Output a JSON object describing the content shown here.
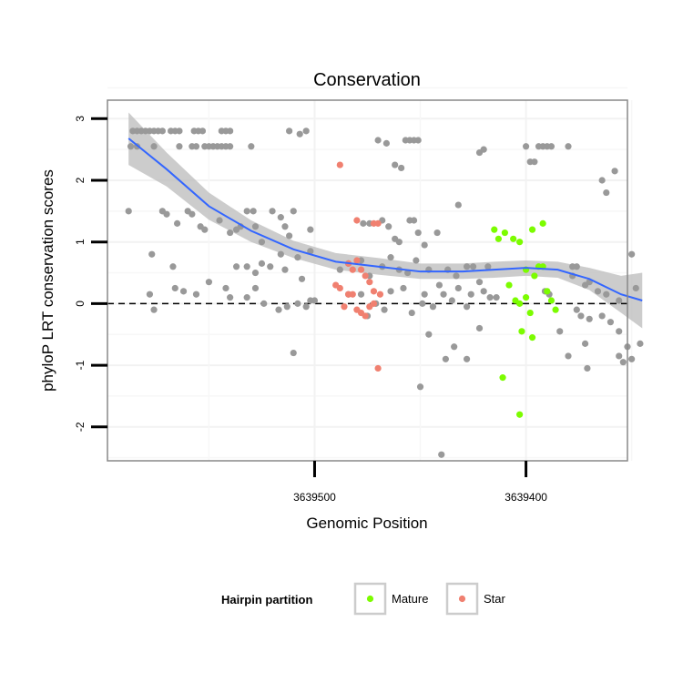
{
  "chart_data": {
    "type": "scatter",
    "title": "Conservation",
    "xlabel": "Genomic Position",
    "ylabel": "phyloP LRT conservation scores",
    "x_axis_reversed": true,
    "x_ticks": [
      {
        "value": 3639500,
        "label": "3639500"
      },
      {
        "value": 3639400,
        "label": "3639400"
      }
    ],
    "y_ticks": [
      {
        "value": -2,
        "label": "-2"
      },
      {
        "value": -1,
        "label": "-1"
      },
      {
        "value": 0,
        "label": "0"
      },
      {
        "value": 1,
        "label": "1"
      },
      {
        "value": 2,
        "label": "2"
      },
      {
        "value": 3,
        "label": "3"
      }
    ],
    "xlim": [
      3639598,
      3639352
    ],
    "ylim": [
      -2.55,
      3.3
    ],
    "grid": true,
    "reference_line": {
      "y": 0,
      "style": "dashed",
      "color": "#000000"
    },
    "legend": {
      "title": "Hairpin partition",
      "position": "bottom",
      "entries": [
        {
          "label": "Mature",
          "color": "#7CFC00"
        },
        {
          "label": "Star",
          "color": "#F08070"
        }
      ]
    },
    "colors": {
      "other": "#999999",
      "mature": "#7CFC00",
      "star": "#F08070",
      "smooth_line": "#3366FF",
      "smooth_band": "#BBBBBB"
    },
    "series": [
      {
        "group": "other",
        "points": [
          [
            3639586,
            2.8
          ],
          [
            3639584,
            2.8
          ],
          [
            3639582,
            2.8
          ],
          [
            3639580,
            2.8
          ],
          [
            3639578,
            2.8
          ],
          [
            3639576,
            2.8
          ],
          [
            3639574,
            2.8
          ],
          [
            3639572,
            2.8
          ],
          [
            3639568,
            2.8
          ],
          [
            3639566,
            2.8
          ],
          [
            3639564,
            2.8
          ],
          [
            3639557,
            2.8
          ],
          [
            3639555,
            2.8
          ],
          [
            3639553,
            2.8
          ],
          [
            3639544,
            2.8
          ],
          [
            3639542,
            2.8
          ],
          [
            3639540,
            2.8
          ],
          [
            3639587,
            2.55
          ],
          [
            3639584,
            2.55
          ],
          [
            3639576,
            2.55
          ],
          [
            3639564,
            2.55
          ],
          [
            3639558,
            2.55
          ],
          [
            3639556,
            2.55
          ],
          [
            3639552,
            2.55
          ],
          [
            3639550,
            2.55
          ],
          [
            3639548,
            2.55
          ],
          [
            3639546,
            2.55
          ],
          [
            3639544,
            2.55
          ],
          [
            3639542,
            2.55
          ],
          [
            3639540,
            2.55
          ],
          [
            3639530,
            2.55
          ],
          [
            3639512,
            2.8
          ],
          [
            3639507,
            2.75
          ],
          [
            3639504,
            2.8
          ],
          [
            3639588,
            1.5
          ],
          [
            3639572,
            1.5
          ],
          [
            3639570,
            1.45
          ],
          [
            3639565,
            1.3
          ],
          [
            3639560,
            1.5
          ],
          [
            3639558,
            1.45
          ],
          [
            3639554,
            1.25
          ],
          [
            3639552,
            1.2
          ],
          [
            3639545,
            1.35
          ],
          [
            3639540,
            1.15
          ],
          [
            3639537,
            1.2
          ],
          [
            3639535,
            1.25
          ],
          [
            3639532,
            1.5
          ],
          [
            3639529,
            1.5
          ],
          [
            3639528,
            1.25
          ],
          [
            3639525,
            1.0
          ],
          [
            3639520,
            1.5
          ],
          [
            3639516,
            1.4
          ],
          [
            3639514,
            1.25
          ],
          [
            3639512,
            1.1
          ],
          [
            3639510,
            1.5
          ],
          [
            3639502,
            1.2
          ],
          [
            3639577,
            0.8
          ],
          [
            3639567,
            0.6
          ],
          [
            3639550,
            0.35
          ],
          [
            3639537,
            0.6
          ],
          [
            3639532,
            0.6
          ],
          [
            3639528,
            0.5
          ],
          [
            3639525,
            0.65
          ],
          [
            3639521,
            0.6
          ],
          [
            3639516,
            0.8
          ],
          [
            3639514,
            0.55
          ],
          [
            3639508,
            0.75
          ],
          [
            3639506,
            0.4
          ],
          [
            3639502,
            0.85
          ],
          [
            3639578,
            0.15
          ],
          [
            3639576,
            -0.1
          ],
          [
            3639566,
            0.25
          ],
          [
            3639562,
            0.2
          ],
          [
            3639556,
            0.15
          ],
          [
            3639542,
            0.25
          ],
          [
            3639540,
            0.1
          ],
          [
            3639532,
            0.1
          ],
          [
            3639528,
            0.25
          ],
          [
            3639524,
            0.0
          ],
          [
            3639517,
            -0.1
          ],
          [
            3639513,
            -0.05
          ],
          [
            3639508,
            0.0
          ],
          [
            3639504,
            -0.05
          ],
          [
            3639502,
            0.05
          ],
          [
            3639500,
            0.05
          ],
          [
            3639510,
            -0.8
          ],
          [
            3639470,
            2.65
          ],
          [
            3639466,
            2.6
          ],
          [
            3639462,
            2.25
          ],
          [
            3639459,
            2.2
          ],
          [
            3639457,
            2.65
          ],
          [
            3639455,
            2.65
          ],
          [
            3639453,
            2.65
          ],
          [
            3639451,
            2.65
          ],
          [
            3639477,
            1.3
          ],
          [
            3639474,
            1.3
          ],
          [
            3639468,
            1.35
          ],
          [
            3639465,
            1.25
          ],
          [
            3639462,
            1.05
          ],
          [
            3639460,
            1.0
          ],
          [
            3639455,
            1.35
          ],
          [
            3639453,
            1.35
          ],
          [
            3639451,
            1.15
          ],
          [
            3639448,
            0.95
          ],
          [
            3639442,
            1.15
          ],
          [
            3639488,
            0.55
          ],
          [
            3639484,
            0.65
          ],
          [
            3639478,
            0.7
          ],
          [
            3639474,
            0.45
          ],
          [
            3639468,
            0.6
          ],
          [
            3639464,
            0.75
          ],
          [
            3639460,
            0.55
          ],
          [
            3639456,
            0.5
          ],
          [
            3639452,
            0.7
          ],
          [
            3639446,
            0.55
          ],
          [
            3639441,
            0.3
          ],
          [
            3639437,
            0.55
          ],
          [
            3639433,
            0.45
          ],
          [
            3639428,
            0.6
          ],
          [
            3639425,
            0.6
          ],
          [
            3639422,
            0.35
          ],
          [
            3639484,
            0.15
          ],
          [
            3639478,
            0.15
          ],
          [
            3639475,
            -0.2
          ],
          [
            3639471,
            0.0
          ],
          [
            3639467,
            -0.1
          ],
          [
            3639464,
            0.2
          ],
          [
            3639458,
            0.25
          ],
          [
            3639454,
            -0.15
          ],
          [
            3639448,
            0.15
          ],
          [
            3639444,
            -0.05
          ],
          [
            3639439,
            0.15
          ],
          [
            3639435,
            0.05
          ],
          [
            3639432,
            0.25
          ],
          [
            3639428,
            -0.05
          ],
          [
            3639426,
            0.15
          ],
          [
            3639420,
            0.2
          ],
          [
            3639417,
            0.1
          ],
          [
            3639414,
            0.1
          ],
          [
            3639449,
            0.0
          ],
          [
            3639446,
            -0.5
          ],
          [
            3639438,
            -0.9
          ],
          [
            3639434,
            -0.7
          ],
          [
            3639428,
            -0.9
          ],
          [
            3639422,
            -0.4
          ],
          [
            3639450,
            -1.35
          ],
          [
            3639440,
            -2.45
          ],
          [
            3639432,
            1.6
          ],
          [
            3639422,
            2.45
          ],
          [
            3639420,
            2.5
          ],
          [
            3639418,
            0.6
          ],
          [
            3639400,
            2.55
          ],
          [
            3639398,
            2.3
          ],
          [
            3639396,
            2.3
          ],
          [
            3639394,
            2.55
          ],
          [
            3639392,
            2.55
          ],
          [
            3639390,
            2.55
          ],
          [
            3639388,
            2.55
          ],
          [
            3639380,
            2.55
          ],
          [
            3639391,
            0.2
          ],
          [
            3639389,
            0.15
          ],
          [
            3639384,
            -0.45
          ],
          [
            3639378,
            0.45
          ],
          [
            3639378,
            0.6
          ],
          [
            3639376,
            0.6
          ],
          [
            3639372,
            0.3
          ],
          [
            3639370,
            0.35
          ],
          [
            3639366,
            0.2
          ],
          [
            3639362,
            0.15
          ],
          [
            3639356,
            0.05
          ],
          [
            3639376,
            -0.1
          ],
          [
            3639374,
            -0.2
          ],
          [
            3639370,
            -0.25
          ],
          [
            3639364,
            -0.2
          ],
          [
            3639360,
            -0.3
          ],
          [
            3639356,
            -0.45
          ],
          [
            3639380,
            -0.85
          ],
          [
            3639372,
            -0.65
          ],
          [
            3639371,
            -1.05
          ],
          [
            3639356,
            -0.85
          ],
          [
            3639354,
            -0.95
          ],
          [
            3639352,
            -0.7
          ],
          [
            3639350,
            -0.9
          ],
          [
            3639364,
            2.0
          ],
          [
            3639362,
            1.8
          ],
          [
            3639358,
            2.15
          ],
          [
            3639350,
            0.8
          ],
          [
            3639348,
            0.25
          ],
          [
            3639346,
            -0.65
          ]
        ]
      },
      {
        "group": "mature",
        "points": [
          [
            3639415,
            1.2
          ],
          [
            3639413,
            1.05
          ],
          [
            3639410,
            1.15
          ],
          [
            3639406,
            1.05
          ],
          [
            3639403,
            1.0
          ],
          [
            3639400,
            0.55
          ],
          [
            3639397,
            1.2
          ],
          [
            3639392,
            1.3
          ],
          [
            3639408,
            0.3
          ],
          [
            3639405,
            0.05
          ],
          [
            3639403,
            0.0
          ],
          [
            3639400,
            0.1
          ],
          [
            3639398,
            -0.15
          ],
          [
            3639396,
            0.45
          ],
          [
            3639394,
            0.6
          ],
          [
            3639392,
            0.6
          ],
          [
            3639390,
            0.2
          ],
          [
            3639388,
            0.05
          ],
          [
            3639386,
            -0.1
          ],
          [
            3639402,
            -0.45
          ],
          [
            3639397,
            -0.55
          ],
          [
            3639411,
            -1.2
          ],
          [
            3639403,
            -1.8
          ]
        ]
      },
      {
        "group": "star",
        "points": [
          [
            3639488,
            2.25
          ],
          [
            3639480,
            1.35
          ],
          [
            3639472,
            1.3
          ],
          [
            3639470,
            1.3
          ],
          [
            3639484,
            0.65
          ],
          [
            3639482,
            0.55
          ],
          [
            3639480,
            0.7
          ],
          [
            3639478,
            0.55
          ],
          [
            3639476,
            0.45
          ],
          [
            3639474,
            0.35
          ],
          [
            3639472,
            0.2
          ],
          [
            3639469,
            0.15
          ],
          [
            3639490,
            0.3
          ],
          [
            3639488,
            0.25
          ],
          [
            3639484,
            0.15
          ],
          [
            3639482,
            0.15
          ],
          [
            3639486,
            -0.05
          ],
          [
            3639480,
            -0.1
          ],
          [
            3639478,
            -0.15
          ],
          [
            3639476,
            -0.2
          ],
          [
            3639474,
            -0.05
          ],
          [
            3639472,
            0.0
          ],
          [
            3639470,
            -1.05
          ]
        ]
      }
    ],
    "smooth_fit": {
      "line": [
        [
          3639588,
          2.68
        ],
        [
          3639570,
          2.18
        ],
        [
          3639550,
          1.58
        ],
        [
          3639530,
          1.18
        ],
        [
          3639510,
          0.88
        ],
        [
          3639490,
          0.68
        ],
        [
          3639470,
          0.6
        ],
        [
          3639450,
          0.52
        ],
        [
          3639430,
          0.52
        ],
        [
          3639415,
          0.55
        ],
        [
          3639400,
          0.58
        ],
        [
          3639385,
          0.55
        ],
        [
          3639370,
          0.4
        ],
        [
          3639355,
          0.15
        ],
        [
          3639345,
          0.05
        ]
      ],
      "upper": [
        [
          3639588,
          3.1
        ],
        [
          3639570,
          2.45
        ],
        [
          3639550,
          1.8
        ],
        [
          3639530,
          1.35
        ],
        [
          3639510,
          1.02
        ],
        [
          3639490,
          0.82
        ],
        [
          3639470,
          0.74
        ],
        [
          3639450,
          0.65
        ],
        [
          3639430,
          0.65
        ],
        [
          3639415,
          0.68
        ],
        [
          3639400,
          0.7
        ],
        [
          3639385,
          0.68
        ],
        [
          3639370,
          0.58
        ],
        [
          3639355,
          0.45
        ],
        [
          3639345,
          0.5
        ]
      ],
      "lower": [
        [
          3639588,
          2.25
        ],
        [
          3639570,
          1.9
        ],
        [
          3639550,
          1.36
        ],
        [
          3639530,
          1.0
        ],
        [
          3639510,
          0.74
        ],
        [
          3639490,
          0.55
        ],
        [
          3639470,
          0.47
        ],
        [
          3639450,
          0.4
        ],
        [
          3639430,
          0.4
        ],
        [
          3639415,
          0.42
        ],
        [
          3639400,
          0.45
        ],
        [
          3639385,
          0.42
        ],
        [
          3639370,
          0.22
        ],
        [
          3639355,
          -0.15
        ],
        [
          3639345,
          -0.4
        ]
      ]
    }
  }
}
